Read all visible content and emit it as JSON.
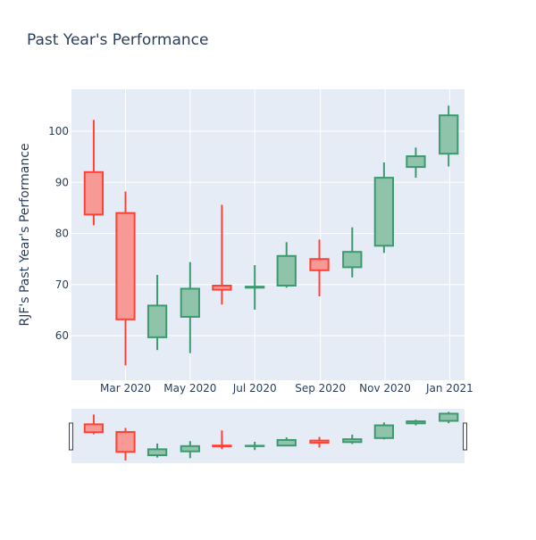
{
  "chart_data": {
    "type": "candlestick",
    "title": "Past Year's Performance",
    "xlabel": "",
    "ylabel": "RJF's Past Year's Performance",
    "ylim": [
      51.3,
      108.2
    ],
    "xlim": [
      "2020-01-10",
      "2021-01-15"
    ],
    "yticks": [
      60,
      70,
      80,
      90,
      100
    ],
    "xticks": [
      {
        "date": "2020-03-01",
        "label": "Mar 2020"
      },
      {
        "date": "2020-05-01",
        "label": "May 2020"
      },
      {
        "date": "2020-07-01",
        "label": "Jul 2020"
      },
      {
        "date": "2020-09-01",
        "label": "Sep 2020"
      },
      {
        "date": "2020-11-01",
        "label": "Nov 2020"
      },
      {
        "date": "2021-01-01",
        "label": "Jan 2021"
      }
    ],
    "candles": [
      {
        "date": "2020-01-31",
        "open": 92.0,
        "high": 102.2,
        "low": 81.6,
        "close": 83.7
      },
      {
        "date": "2020-03-01",
        "open": 84.0,
        "high": 88.2,
        "low": 54.2,
        "close": 63.2
      },
      {
        "date": "2020-03-31",
        "open": 59.7,
        "high": 71.9,
        "low": 57.2,
        "close": 65.9
      },
      {
        "date": "2020-05-01",
        "open": 63.7,
        "high": 74.4,
        "low": 56.6,
        "close": 69.2
      },
      {
        "date": "2020-05-31",
        "open": 69.8,
        "high": 85.6,
        "low": 66.1,
        "close": 69.0
      },
      {
        "date": "2020-07-01",
        "open": 69.4,
        "high": 73.8,
        "low": 65.1,
        "close": 69.6
      },
      {
        "date": "2020-07-31",
        "open": 69.8,
        "high": 78.3,
        "low": 69.4,
        "close": 75.6
      },
      {
        "date": "2020-08-31",
        "open": 75.0,
        "high": 78.8,
        "low": 67.7,
        "close": 72.8
      },
      {
        "date": "2020-10-01",
        "open": 73.4,
        "high": 81.2,
        "low": 71.4,
        "close": 76.4
      },
      {
        "date": "2020-10-31",
        "open": 77.6,
        "high": 93.9,
        "low": 76.2,
        "close": 90.9
      },
      {
        "date": "2020-11-30",
        "open": 93.0,
        "high": 96.8,
        "low": 90.9,
        "close": 95.1
      },
      {
        "date": "2020-12-31",
        "open": 95.6,
        "high": 105.0,
        "low": 93.1,
        "close": 103.1
      }
    ],
    "increasing_color": "#3d9970",
    "increasing_fill": "#8fc4ab",
    "decreasing_color": "#ff4136",
    "decreasing_fill": "#f79a96",
    "plot_bg": "#e5ecf6",
    "grid": true,
    "rangeslider": true
  }
}
